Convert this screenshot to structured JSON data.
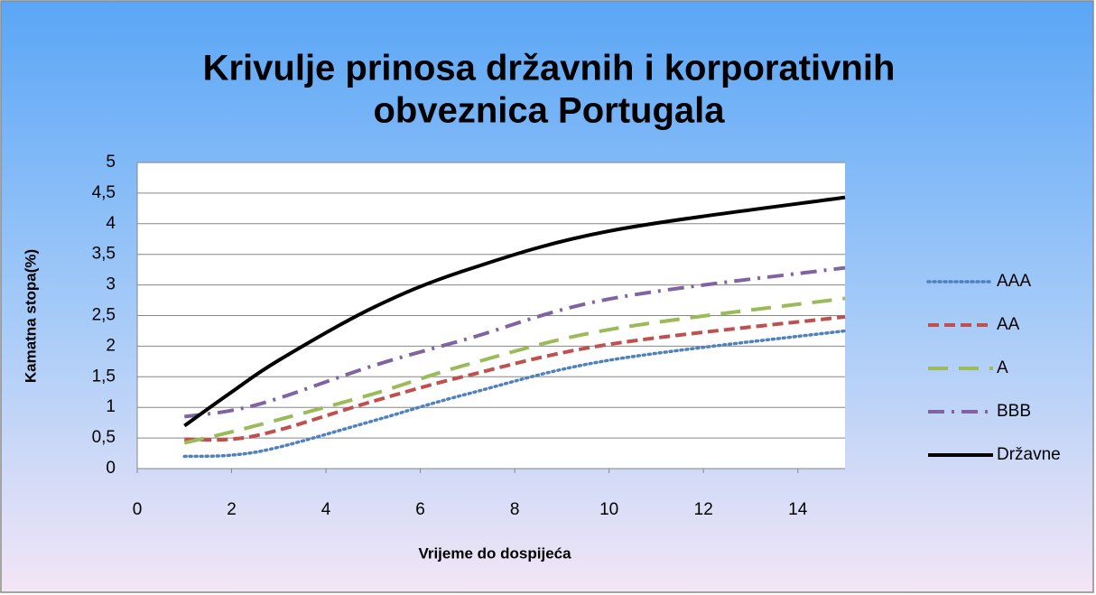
{
  "chart_data": {
    "type": "line",
    "title": [
      "Krivulje prinosa državnih i korporativnih",
      "obveznica Portugala"
    ],
    "x_label": "Vrijeme do dospijeća",
    "y_label": "Kamatna stopa(%)",
    "xlim": [
      0,
      15
    ],
    "xticks": [
      0,
      2,
      4,
      6,
      8,
      10,
      12,
      14
    ],
    "ylim": [
      0,
      5
    ],
    "yticks": [
      0,
      {
        "value": 0.5,
        "label": "0,5"
      },
      1,
      {
        "value": 1.5,
        "label": "1,5"
      },
      2,
      {
        "value": 2.5,
        "label": "2,5"
      },
      3,
      {
        "value": 3.5,
        "label": "3,5"
      },
      4,
      {
        "value": 4.5,
        "label": "4,5"
      },
      5
    ],
    "grid": true,
    "smooth": true,
    "legend": "right",
    "x": [
      1,
      2,
      3,
      5,
      7,
      10,
      15
    ],
    "series": [
      {
        "name": "AAA",
        "color": "#4f81bd",
        "dash": "dotted",
        "values": [
          0.2,
          0.22,
          0.35,
          0.78,
          1.22,
          1.77,
          2.25
        ]
      },
      {
        "name": "AA",
        "color": "#c0504d",
        "dash": "dashed",
        "values": [
          0.48,
          0.48,
          0.63,
          1.1,
          1.52,
          2.03,
          2.48
        ]
      },
      {
        "name": "A",
        "color": "#9bbb59",
        "dash": "longdash",
        "values": [
          0.42,
          0.6,
          0.8,
          1.22,
          1.7,
          2.27,
          2.78
        ]
      },
      {
        "name": "BBB",
        "color": "#8064a2",
        "dash": "dashdot",
        "values": [
          0.85,
          0.95,
          1.15,
          1.68,
          2.12,
          2.77,
          3.28
        ]
      },
      {
        "name": "Državne",
        "color": "#000000",
        "dash": "solid",
        "values": [
          0.7,
          1.25,
          1.77,
          2.63,
          3.25,
          3.88,
          4.43
        ]
      }
    ]
  }
}
